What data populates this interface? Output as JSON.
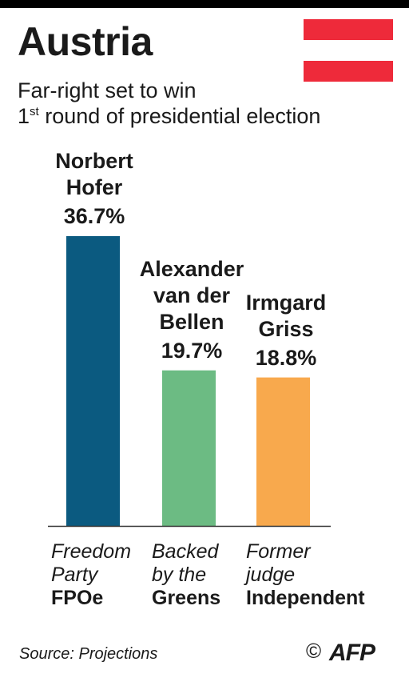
{
  "header": {
    "title": "Austria",
    "subtitle_line1": "Far-right set to win",
    "subtitle_pre": "1",
    "subtitle_sup": "st",
    "subtitle_post": " round of presidential election"
  },
  "flag": {
    "colors": [
      "#ee2a3a",
      "#ffffff",
      "#ee2a3a"
    ]
  },
  "chart_data": {
    "type": "bar",
    "categories": [
      "Norbert Hofer",
      "Alexander van der Bellen",
      "Irmgard Griss"
    ],
    "candidate_lines": [
      [
        "Norbert",
        "Hofer"
      ],
      [
        "Alexander",
        "van der",
        "Bellen"
      ],
      [
        "Irmgard",
        "Griss"
      ]
    ],
    "values": [
      36.7,
      19.7,
      18.8
    ],
    "value_labels": [
      "36.7%",
      "19.7%",
      "18.8%"
    ],
    "colors": [
      "#0b5a80",
      "#6cbb83",
      "#f8a94d"
    ],
    "parties": [
      {
        "italic_lines": [
          "Freedom",
          "Party"
        ],
        "bold": "FPOe"
      },
      {
        "italic_lines": [
          "Backed",
          "by the"
        ],
        "bold": "Greens"
      },
      {
        "italic_lines": [
          "Former",
          "judge"
        ],
        "bold": "Independent"
      }
    ],
    "ylim": [
      0,
      36.7
    ],
    "xlabel": "",
    "ylabel": ""
  },
  "footer": {
    "source": "Source: Projections",
    "copyright": "©",
    "agency": "AFP"
  }
}
